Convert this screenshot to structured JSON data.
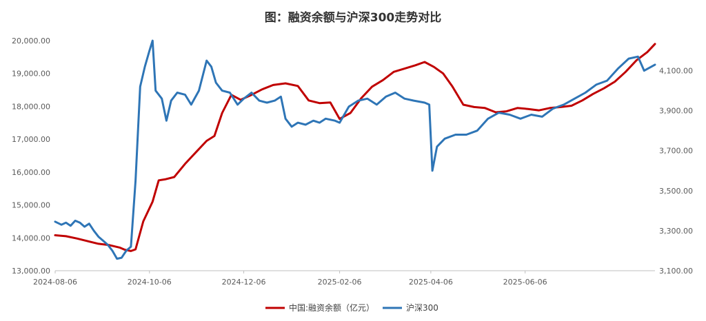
{
  "chart_data": {
    "type": "line",
    "title": "图：融资余额与沪深300走势对比",
    "x_tick_labels": [
      "2024-08-06",
      "2024-10-06",
      "2024-12-06",
      "2025-02-06",
      "2025-04-06",
      "2025-06-06"
    ],
    "left_axis": {
      "ylim": [
        13000,
        20000
      ],
      "tick_labels": [
        "13,000.00",
        "14,000.00",
        "15,000.00",
        "16,000.00",
        "17,000.00",
        "18,000.00",
        "19,000.00",
        "20,000.00"
      ]
    },
    "right_axis": {
      "ylim": [
        3100,
        4250
      ],
      "tick_labels": [
        "3,100.00",
        "3,300.00",
        "3,500.00",
        "3,700.00",
        "3,900.00",
        "4,100.00"
      ]
    },
    "grid": false,
    "legend_position": "bottom",
    "series": [
      {
        "name": "中国:融资余额（亿元）",
        "axis": "left",
        "color": "#c00000",
        "points": [
          [
            "2024-08-06",
            14080
          ],
          [
            "2024-08-13",
            14050
          ],
          [
            "2024-08-20",
            13980
          ],
          [
            "2024-08-27",
            13900
          ],
          [
            "2024-09-03",
            13820
          ],
          [
            "2024-09-10",
            13780
          ],
          [
            "2024-09-17",
            13700
          ],
          [
            "2024-09-20",
            13640
          ],
          [
            "2024-09-24",
            13600
          ],
          [
            "2024-09-27",
            13650
          ],
          [
            "2024-10-02",
            14500
          ],
          [
            "2024-10-08",
            15100
          ],
          [
            "2024-10-12",
            15750
          ],
          [
            "2024-10-16",
            15780
          ],
          [
            "2024-10-22",
            15850
          ],
          [
            "2024-10-29",
            16250
          ],
          [
            "2024-11-05",
            16600
          ],
          [
            "2024-11-12",
            16950
          ],
          [
            "2024-11-17",
            17100
          ],
          [
            "2024-11-22",
            17800
          ],
          [
            "2024-11-28",
            18350
          ],
          [
            "2024-12-04",
            18200
          ],
          [
            "2024-12-11",
            18350
          ],
          [
            "2024-12-18",
            18520
          ],
          [
            "2024-12-25",
            18650
          ],
          [
            "2025-01-02",
            18700
          ],
          [
            "2025-01-10",
            18620
          ],
          [
            "2025-01-17",
            18180
          ],
          [
            "2025-01-24",
            18100
          ],
          [
            "2025-01-31",
            18120
          ],
          [
            "2025-02-06",
            17620
          ],
          [
            "2025-02-13",
            17800
          ],
          [
            "2025-02-20",
            18250
          ],
          [
            "2025-02-27",
            18600
          ],
          [
            "2025-03-06",
            18800
          ],
          [
            "2025-03-13",
            19050
          ],
          [
            "2025-03-20",
            19150
          ],
          [
            "2025-03-27",
            19250
          ],
          [
            "2025-04-02",
            19350
          ],
          [
            "2025-04-08",
            19200
          ],
          [
            "2025-04-14",
            19000
          ],
          [
            "2025-04-20",
            18600
          ],
          [
            "2025-04-27",
            18050
          ],
          [
            "2025-05-04",
            17980
          ],
          [
            "2025-05-11",
            17950
          ],
          [
            "2025-05-18",
            17820
          ],
          [
            "2025-05-25",
            17850
          ],
          [
            "2025-06-01",
            17950
          ],
          [
            "2025-06-08",
            17920
          ],
          [
            "2025-06-15",
            17880
          ],
          [
            "2025-06-22",
            17950
          ],
          [
            "2025-06-29",
            17980
          ],
          [
            "2025-07-06",
            18020
          ],
          [
            "2025-07-13",
            18180
          ],
          [
            "2025-07-20",
            18380
          ],
          [
            "2025-07-27",
            18550
          ],
          [
            "2025-08-03",
            18750
          ],
          [
            "2025-08-10",
            19050
          ],
          [
            "2025-08-17",
            19400
          ],
          [
            "2025-08-24",
            19650
          ],
          [
            "2025-08-29",
            19900
          ]
        ]
      },
      {
        "name": "沪深300",
        "axis": "right",
        "color": "#2e75b6",
        "points": [
          [
            "2024-08-06",
            3345
          ],
          [
            "2024-08-10",
            3330
          ],
          [
            "2024-08-13",
            3340
          ],
          [
            "2024-08-16",
            3325
          ],
          [
            "2024-08-19",
            3350
          ],
          [
            "2024-08-22",
            3340
          ],
          [
            "2024-08-25",
            3320
          ],
          [
            "2024-08-28",
            3335
          ],
          [
            "2024-08-31",
            3300
          ],
          [
            "2024-09-03",
            3270
          ],
          [
            "2024-09-06",
            3250
          ],
          [
            "2024-09-09",
            3230
          ],
          [
            "2024-09-12",
            3200
          ],
          [
            "2024-09-15",
            3160
          ],
          [
            "2024-09-18",
            3165
          ],
          [
            "2024-09-21",
            3200
          ],
          [
            "2024-09-24",
            3220
          ],
          [
            "2024-09-27",
            3550
          ],
          [
            "2024-09-30",
            4020
          ],
          [
            "2024-10-03",
            4120
          ],
          [
            "2024-10-06",
            4200
          ],
          [
            "2024-10-08",
            4250
          ],
          [
            "2024-10-10",
            4000
          ],
          [
            "2024-10-14",
            3960
          ],
          [
            "2024-10-17",
            3850
          ],
          [
            "2024-10-20",
            3950
          ],
          [
            "2024-10-24",
            3990
          ],
          [
            "2024-10-29",
            3980
          ],
          [
            "2024-11-02",
            3930
          ],
          [
            "2024-11-07",
            4000
          ],
          [
            "2024-11-12",
            4150
          ],
          [
            "2024-11-15",
            4120
          ],
          [
            "2024-11-18",
            4040
          ],
          [
            "2024-11-22",
            4000
          ],
          [
            "2024-11-27",
            3990
          ],
          [
            "2024-12-02",
            3930
          ],
          [
            "2024-12-06",
            3960
          ],
          [
            "2024-12-11",
            3990
          ],
          [
            "2024-12-16",
            3950
          ],
          [
            "2024-12-21",
            3940
          ],
          [
            "2024-12-26",
            3950
          ],
          [
            "2024-12-30",
            3970
          ],
          [
            "2025-01-02",
            3860
          ],
          [
            "2025-01-06",
            3820
          ],
          [
            "2025-01-10",
            3840
          ],
          [
            "2025-01-15",
            3830
          ],
          [
            "2025-01-20",
            3850
          ],
          [
            "2025-01-24",
            3840
          ],
          [
            "2025-01-28",
            3860
          ],
          [
            "2025-02-03",
            3850
          ],
          [
            "2025-02-06",
            3840
          ],
          [
            "2025-02-12",
            3920
          ],
          [
            "2025-02-18",
            3950
          ],
          [
            "2025-02-24",
            3960
          ],
          [
            "2025-03-02",
            3930
          ],
          [
            "2025-03-08",
            3970
          ],
          [
            "2025-03-14",
            3990
          ],
          [
            "2025-03-20",
            3960
          ],
          [
            "2025-03-26",
            3950
          ],
          [
            "2025-04-02",
            3940
          ],
          [
            "2025-04-05",
            3930
          ],
          [
            "2025-04-07",
            3600
          ],
          [
            "2025-04-10",
            3720
          ],
          [
            "2025-04-15",
            3760
          ],
          [
            "2025-04-22",
            3780
          ],
          [
            "2025-04-29",
            3780
          ],
          [
            "2025-05-06",
            3800
          ],
          [
            "2025-05-13",
            3860
          ],
          [
            "2025-05-20",
            3890
          ],
          [
            "2025-05-27",
            3880
          ],
          [
            "2025-06-03",
            3860
          ],
          [
            "2025-06-10",
            3880
          ],
          [
            "2025-06-17",
            3870
          ],
          [
            "2025-06-24",
            3910
          ],
          [
            "2025-07-01",
            3930
          ],
          [
            "2025-07-08",
            3960
          ],
          [
            "2025-07-15",
            3990
          ],
          [
            "2025-07-22",
            4030
          ],
          [
            "2025-07-29",
            4050
          ],
          [
            "2025-08-05",
            4110
          ],
          [
            "2025-08-12",
            4160
          ],
          [
            "2025-08-18",
            4170
          ],
          [
            "2025-08-22",
            4100
          ],
          [
            "2025-08-29",
            4130
          ]
        ]
      }
    ]
  }
}
